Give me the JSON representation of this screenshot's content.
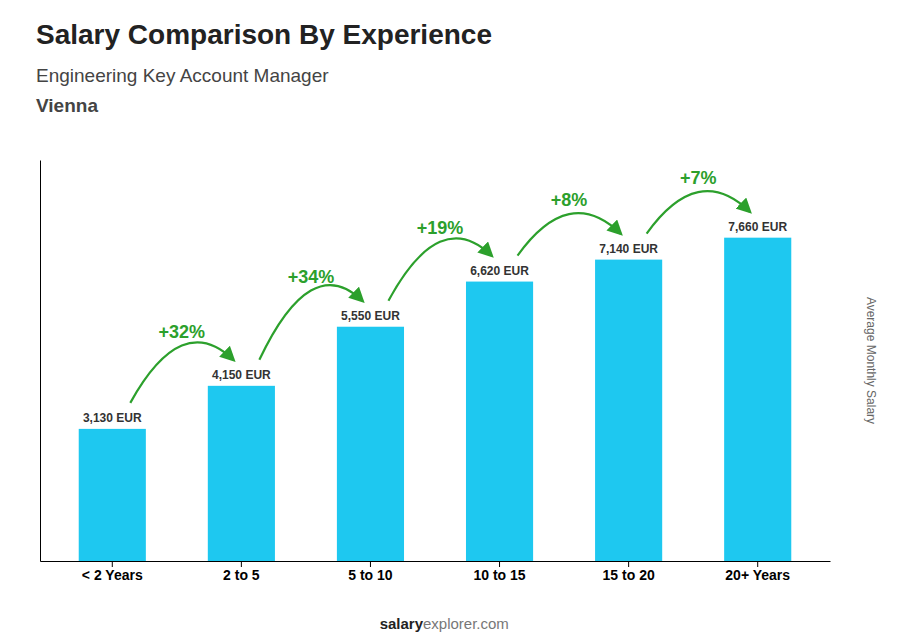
{
  "chart_data": {
    "type": "bar",
    "title": "Salary Comparison By Experience",
    "subtitle": "Engineering Key Account Manager",
    "city": "Vienna",
    "ylabel": "Average Monthly Salary",
    "footer": {
      "bold": "salary",
      "normal": "explorer.com"
    },
    "categories": [
      "< 2 Years",
      "2 to 5",
      "5 to 10",
      "10 to 15",
      "15 to 20",
      "20+ Years"
    ],
    "values": [
      3130,
      4150,
      5550,
      6620,
      7140,
      7660
    ],
    "value_labels": [
      "3,130 EUR",
      "4,150 EUR",
      "5,550 EUR",
      "6,620 EUR",
      "7,140 EUR",
      "7,660 EUR"
    ],
    "data_labels": true,
    "annotations": [
      "+32%",
      "+34%",
      "+19%",
      "+8%",
      "+7%"
    ],
    "color": "#1ec8f0",
    "ylim": [
      0,
      9500
    ],
    "tick_labels": "x",
    "grid": false
  }
}
